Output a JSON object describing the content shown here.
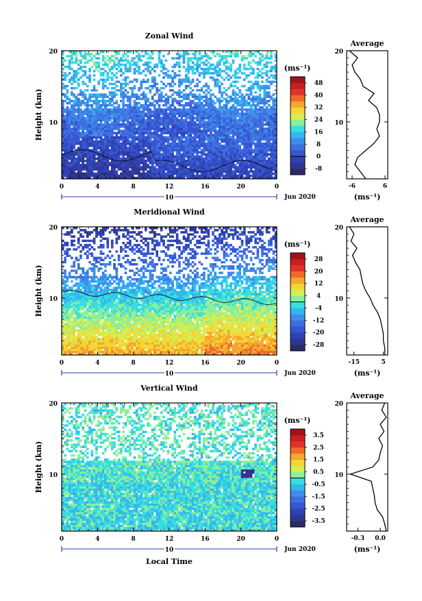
{
  "chart_data": [
    {
      "type": "heatmap",
      "title": "Zonal Wind",
      "ylabel": "Height (km)",
      "ylim": [
        2,
        20
      ],
      "yticks": [
        "10",
        "20"
      ],
      "xlim": [
        0,
        24
      ],
      "xticks": [
        "0",
        "4",
        "8",
        "12",
        "16",
        "20",
        "0"
      ],
      "day_labels": [
        "10"
      ],
      "date_label": "Jun 2020",
      "colorbar_unit": "(ms⁻¹)",
      "colorbar_ticks": [
        "48",
        "40",
        "32",
        "24",
        "16",
        "8",
        "0",
        "-8"
      ],
      "colorbar_range": [
        -12,
        52
      ],
      "colorbar_colors": [
        "#2b2c66",
        "#30368f",
        "#2f43b3",
        "#3655d0",
        "#3e6fe0",
        "#3f8dea",
        "#35b7ee",
        "#37dee0",
        "#8cee9a",
        "#d4ee52",
        "#f3d635",
        "#f5a62f",
        "#f06a2b",
        "#e0342a",
        "#c81f23",
        "#a01418"
      ],
      "field": "zonal",
      "average": {
        "title": "Average",
        "xlabel": "(ms⁻¹)",
        "xticks": [
          "-6",
          "6"
        ],
        "xlim": [
          -8,
          7
        ],
        "heights": [
          2,
          3,
          4,
          5,
          6,
          7,
          8,
          9,
          10,
          11,
          12,
          13,
          14,
          15,
          16,
          17,
          18,
          19,
          20
        ],
        "values": [
          -1,
          -3,
          -5,
          -4,
          -1,
          2,
          4,
          3,
          4,
          4,
          3,
          0,
          2,
          -2,
          -3,
          -5,
          -6,
          -4,
          -7
        ]
      }
    },
    {
      "type": "heatmap",
      "title": "Meridional Wind",
      "ylabel": "Height (km)",
      "ylim": [
        2,
        20
      ],
      "yticks": [
        "10",
        "20"
      ],
      "xlim": [
        0,
        24
      ],
      "xticks": [
        "0",
        "4",
        "8",
        "12",
        "16",
        "20",
        "0"
      ],
      "day_labels": [
        "10"
      ],
      "date_label": "Jun 2020",
      "colorbar_unit": "(ms⁻¹)",
      "colorbar_ticks": [
        "28",
        "20",
        "12",
        "4",
        "-4",
        "-12",
        "-20",
        "-28"
      ],
      "colorbar_range": [
        -32,
        32
      ],
      "colorbar_colors": [
        "#2b2c66",
        "#30368f",
        "#2f43b3",
        "#3655d0",
        "#3e6fe0",
        "#3f8dea",
        "#35b7ee",
        "#37dee0",
        "#8cee9a",
        "#d4ee52",
        "#f3d635",
        "#f5a62f",
        "#f06a2b",
        "#e0342a",
        "#c81f23",
        "#a01418"
      ],
      "field": "meridional",
      "average": {
        "title": "Average",
        "xlabel": "(ms⁻¹)",
        "xticks": [
          "-15",
          "5"
        ],
        "xlim": [
          -20,
          8
        ],
        "heights": [
          2,
          3,
          4,
          5,
          6,
          7,
          8,
          9,
          10,
          11,
          12,
          13,
          14,
          15,
          16,
          17,
          18,
          19,
          20
        ],
        "values": [
          6,
          6,
          5,
          5,
          4,
          3,
          1,
          -2,
          -4,
          -7,
          -9,
          -10,
          -11,
          -14,
          -16,
          -13,
          -17,
          -15,
          -18
        ]
      }
    },
    {
      "type": "heatmap",
      "title": "Vertical Wind",
      "ylabel": "Height (km)",
      "ylim": [
        2,
        20
      ],
      "yticks": [
        "10",
        "20"
      ],
      "xlim": [
        0,
        24
      ],
      "xticks": [
        "0",
        "4",
        "8",
        "12",
        "16",
        "20",
        "0"
      ],
      "day_labels": [
        "10"
      ],
      "date_label": "Jun 2020",
      "xlabel": "Local Time",
      "colorbar_unit": "(ms⁻¹)",
      "colorbar_ticks": [
        "3.5",
        "2.5",
        "1.5",
        "0.5",
        "-0.5",
        "-1.5",
        "-2.5",
        "-3.5"
      ],
      "colorbar_range": [
        -4,
        4
      ],
      "colorbar_colors": [
        "#2b2c66",
        "#30368f",
        "#2f43b3",
        "#3655d0",
        "#3e6fe0",
        "#3f8dea",
        "#35b7ee",
        "#37dee0",
        "#8cee9a",
        "#d4ee52",
        "#f3d635",
        "#f5a62f",
        "#f06a2b",
        "#e0342a",
        "#c81f23",
        "#a01418"
      ],
      "field": "vertical",
      "average": {
        "title": "Average",
        "xlabel": "(ms⁻¹)",
        "xticks": [
          "-0.3",
          "0.0"
        ],
        "xlim": [
          -0.45,
          0.1
        ],
        "heights": [
          2,
          3,
          4,
          5,
          6,
          7,
          8,
          9,
          10,
          11,
          12,
          13,
          14,
          15,
          16,
          17,
          18,
          19,
          20
        ],
        "values": [
          0.08,
          0.06,
          0.03,
          -0.04,
          -0.07,
          -0.08,
          -0.1,
          -0.12,
          -0.4,
          -0.1,
          -0.02,
          0.0,
          0.03,
          -0.02,
          0.05,
          0.0,
          0.08,
          0.02,
          0.06
        ]
      }
    }
  ]
}
